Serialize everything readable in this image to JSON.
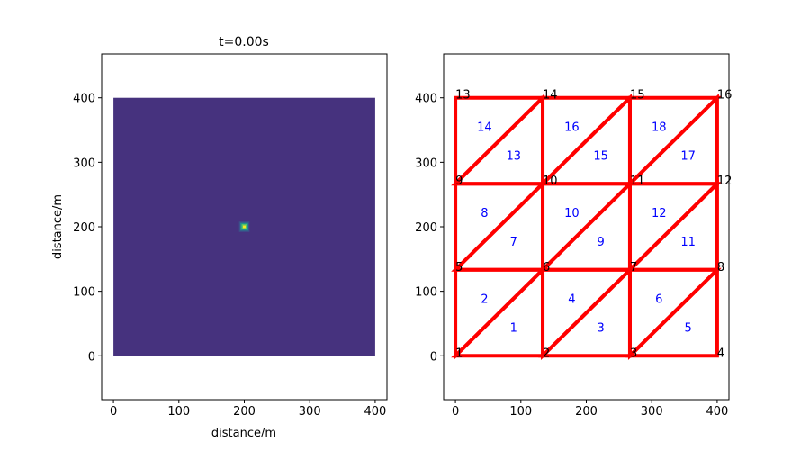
{
  "chart_data": [
    {
      "type": "heatmap",
      "title": "t=0.00s",
      "xlabel": "distance/m",
      "ylabel": "distance/m",
      "xlim": [
        -18,
        418
      ],
      "ylim": [
        -68,
        468
      ],
      "xticks": [
        0,
        100,
        200,
        300,
        400
      ],
      "yticks": [
        0,
        100,
        200,
        300,
        400
      ],
      "field_extent": [
        0,
        400,
        0,
        400
      ],
      "background_color": "#46327e",
      "source": {
        "x": 200,
        "y": 200,
        "half_width": 8
      },
      "source_colors": [
        "#3b528b",
        "#21918c",
        "#5ec962",
        "#fde725"
      ]
    },
    {
      "type": "mesh",
      "title": "",
      "xlabel": "",
      "ylabel": "",
      "xlim": [
        -18,
        418
      ],
      "ylim": [
        -68,
        468
      ],
      "xticks": [
        0,
        100,
        200,
        300,
        400
      ],
      "yticks": [
        0,
        100,
        200,
        300,
        400
      ],
      "edge_color": "#ff0000",
      "node_label_color": "#000000",
      "element_label_color": "#0000ff",
      "nodes": [
        {
          "id": "1",
          "x": 0,
          "y": 0
        },
        {
          "id": "2",
          "x": 133.33,
          "y": 0
        },
        {
          "id": "3",
          "x": 266.67,
          "y": 0
        },
        {
          "id": "4",
          "x": 400,
          "y": 0
        },
        {
          "id": "5",
          "x": 0,
          "y": 133.33
        },
        {
          "id": "6",
          "x": 133.33,
          "y": 133.33
        },
        {
          "id": "7",
          "x": 266.67,
          "y": 133.33
        },
        {
          "id": "8",
          "x": 400,
          "y": 133.33
        },
        {
          "id": "9",
          "x": 0,
          "y": 266.67
        },
        {
          "id": "10",
          "x": 133.33,
          "y": 266.67
        },
        {
          "id": "11",
          "x": 266.67,
          "y": 266.67
        },
        {
          "id": "12",
          "x": 400,
          "y": 266.67
        },
        {
          "id": "13",
          "x": 0,
          "y": 400
        },
        {
          "id": "14",
          "x": 133.33,
          "y": 400
        },
        {
          "id": "15",
          "x": 266.67,
          "y": 400
        },
        {
          "id": "16",
          "x": 400,
          "y": 400
        }
      ],
      "elements": [
        {
          "id": "1",
          "nodes": [
            0,
            1,
            5
          ]
        },
        {
          "id": "2",
          "nodes": [
            0,
            5,
            4
          ]
        },
        {
          "id": "3",
          "nodes": [
            1,
            2,
            6
          ]
        },
        {
          "id": "4",
          "nodes": [
            1,
            6,
            5
          ]
        },
        {
          "id": "5",
          "nodes": [
            2,
            3,
            7
          ]
        },
        {
          "id": "6",
          "nodes": [
            2,
            7,
            6
          ]
        },
        {
          "id": "7",
          "nodes": [
            4,
            5,
            9
          ]
        },
        {
          "id": "8",
          "nodes": [
            4,
            9,
            8
          ]
        },
        {
          "id": "9",
          "nodes": [
            5,
            6,
            10
          ]
        },
        {
          "id": "10",
          "nodes": [
            5,
            10,
            9
          ]
        },
        {
          "id": "11",
          "nodes": [
            6,
            7,
            11
          ]
        },
        {
          "id": "12",
          "nodes": [
            6,
            11,
            10
          ]
        },
        {
          "id": "13",
          "nodes": [
            8,
            9,
            13
          ]
        },
        {
          "id": "14",
          "nodes": [
            8,
            13,
            12
          ]
        },
        {
          "id": "15",
          "nodes": [
            9,
            10,
            14
          ]
        },
        {
          "id": "16",
          "nodes": [
            9,
            14,
            13
          ]
        },
        {
          "id": "17",
          "nodes": [
            10,
            11,
            15
          ]
        },
        {
          "id": "18",
          "nodes": [
            10,
            15,
            14
          ]
        }
      ]
    }
  ]
}
